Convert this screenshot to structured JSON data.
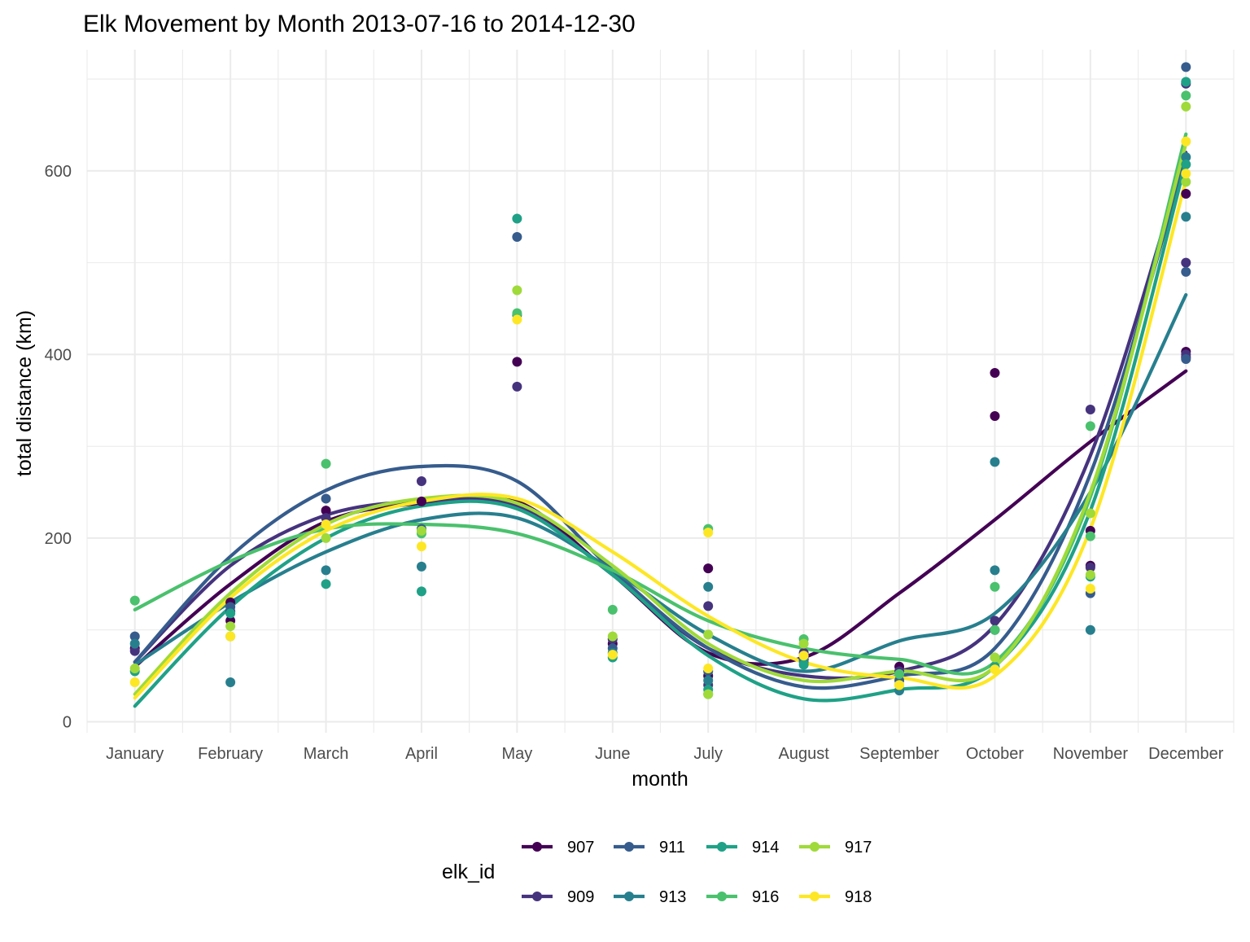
{
  "chart_data": {
    "type": "scatter",
    "title": "Elk Movement by Month 2013-07-16 to 2014-12-30",
    "xlabel": "month",
    "ylabel": "total distance (km)",
    "categories": [
      "January",
      "February",
      "March",
      "April",
      "May",
      "June",
      "July",
      "August",
      "September",
      "October",
      "November",
      "December"
    ],
    "yticks": [
      0,
      200,
      400,
      600
    ],
    "ylim": [
      -12,
      732
    ],
    "grid": true,
    "legend": {
      "title": "elk_id",
      "position": "bottom"
    },
    "overlay": "loess smooth line per elk_id",
    "series": [
      {
        "name": "907",
        "color": "#440154",
        "points": [
          [
            1,
            80
          ],
          [
            2,
            110
          ],
          [
            2,
            130
          ],
          [
            3,
            230
          ],
          [
            4,
            240
          ],
          [
            5,
            392
          ],
          [
            6,
            85
          ],
          [
            7,
            167
          ],
          [
            7,
            50
          ],
          [
            8,
            68
          ],
          [
            9,
            60
          ],
          [
            10,
            380
          ],
          [
            10,
            333
          ],
          [
            11,
            208
          ],
          [
            11,
            170
          ],
          [
            12,
            403
          ],
          [
            12,
            397
          ],
          [
            12,
            575
          ]
        ],
        "smooth": [
          60,
          150,
          218,
          238,
          240,
          160,
          75,
          70,
          140,
          220,
          305,
          382
        ]
      },
      {
        "name": "909",
        "color": "#46337E",
        "points": [
          [
            1,
            77
          ],
          [
            2,
            120
          ],
          [
            3,
            222
          ],
          [
            4,
            262
          ],
          [
            5,
            365
          ],
          [
            6,
            90
          ],
          [
            7,
            126
          ],
          [
            7,
            40
          ],
          [
            8,
            75
          ],
          [
            9,
            55
          ],
          [
            10,
            110
          ],
          [
            11,
            340
          ],
          [
            11,
            168
          ],
          [
            12,
            500
          ],
          [
            12,
            400
          ],
          [
            12,
            695
          ]
        ],
        "smooth": [
          65,
          170,
          225,
          240,
          235,
          160,
          80,
          50,
          55,
          105,
          290,
          620
        ]
      },
      {
        "name": "911",
        "color": "#365C8D",
        "points": [
          [
            1,
            93
          ],
          [
            2,
            125
          ],
          [
            3,
            243
          ],
          [
            4,
            210
          ],
          [
            5,
            528
          ],
          [
            6,
            80
          ],
          [
            7,
            55
          ],
          [
            8,
            70
          ],
          [
            9,
            45
          ],
          [
            10,
            100
          ],
          [
            11,
            140
          ],
          [
            12,
            713
          ],
          [
            12,
            490
          ],
          [
            12,
            395
          ]
        ],
        "smooth": [
          65,
          180,
          252,
          278,
          262,
          165,
          80,
          38,
          50,
          80,
          270,
          615
        ]
      },
      {
        "name": "913",
        "color": "#277F8E",
        "points": [
          [
            1,
            85
          ],
          [
            2,
            43
          ],
          [
            3,
            165
          ],
          [
            4,
            169
          ],
          [
            5,
            443
          ],
          [
            6,
            75
          ],
          [
            7,
            147
          ],
          [
            7,
            45
          ],
          [
            8,
            65
          ],
          [
            9,
            34
          ],
          [
            10,
            283
          ],
          [
            10,
            165
          ],
          [
            11,
            100
          ],
          [
            12,
            615
          ],
          [
            12,
            550
          ]
        ],
        "smooth": [
          62,
          130,
          185,
          220,
          222,
          165,
          95,
          55,
          88,
          118,
          250,
          465
        ]
      },
      {
        "name": "914",
        "color": "#1FA187",
        "points": [
          [
            1,
            55
          ],
          [
            2,
            118
          ],
          [
            3,
            150
          ],
          [
            4,
            142
          ],
          [
            5,
            548
          ],
          [
            6,
            70
          ],
          [
            7,
            35
          ],
          [
            8,
            62
          ],
          [
            9,
            40
          ],
          [
            10,
            60
          ],
          [
            11,
            158
          ],
          [
            12,
            697
          ],
          [
            12,
            607
          ]
        ],
        "smooth": [
          17,
          125,
          200,
          235,
          232,
          160,
          72,
          25,
          35,
          60,
          230,
          610
        ]
      },
      {
        "name": "916",
        "color": "#4AC16D",
        "points": [
          [
            1,
            132
          ],
          [
            2,
            93
          ],
          [
            3,
            281
          ],
          [
            4,
            205
          ],
          [
            5,
            445
          ],
          [
            6,
            122
          ],
          [
            7,
            210
          ],
          [
            7,
            30
          ],
          [
            8,
            90
          ],
          [
            9,
            52
          ],
          [
            10,
            147
          ],
          [
            10,
            100
          ],
          [
            11,
            322
          ],
          [
            11,
            202
          ],
          [
            12,
            682
          ]
        ],
        "smooth": [
          122,
          175,
          210,
          215,
          205,
          165,
          110,
          80,
          68,
          65,
          245,
          640
        ]
      },
      {
        "name": "917",
        "color": "#9FDA3A",
        "points": [
          [
            1,
            58
          ],
          [
            2,
            104
          ],
          [
            3,
            200
          ],
          [
            4,
            208
          ],
          [
            5,
            470
          ],
          [
            6,
            93
          ],
          [
            7,
            95
          ],
          [
            7,
            30
          ],
          [
            8,
            85
          ],
          [
            9,
            40
          ],
          [
            10,
            70
          ],
          [
            11,
            227
          ],
          [
            11,
            160
          ],
          [
            12,
            670
          ],
          [
            12,
            588
          ]
        ],
        "smooth": [
          30,
          140,
          215,
          243,
          238,
          170,
          85,
          45,
          55,
          60,
          250,
          630
        ]
      },
      {
        "name": "918",
        "color": "#FDE725",
        "points": [
          [
            1,
            43
          ],
          [
            2,
            93
          ],
          [
            3,
            215
          ],
          [
            4,
            191
          ],
          [
            5,
            438
          ],
          [
            6,
            73
          ],
          [
            7,
            206
          ],
          [
            7,
            58
          ],
          [
            8,
            72
          ],
          [
            9,
            40
          ],
          [
            10,
            57
          ],
          [
            11,
            145
          ],
          [
            12,
            632
          ],
          [
            12,
            597
          ]
        ],
        "smooth": [
          26,
          135,
          208,
          240,
          243,
          185,
          115,
          65,
          48,
          50,
          210,
          590
        ]
      }
    ]
  }
}
